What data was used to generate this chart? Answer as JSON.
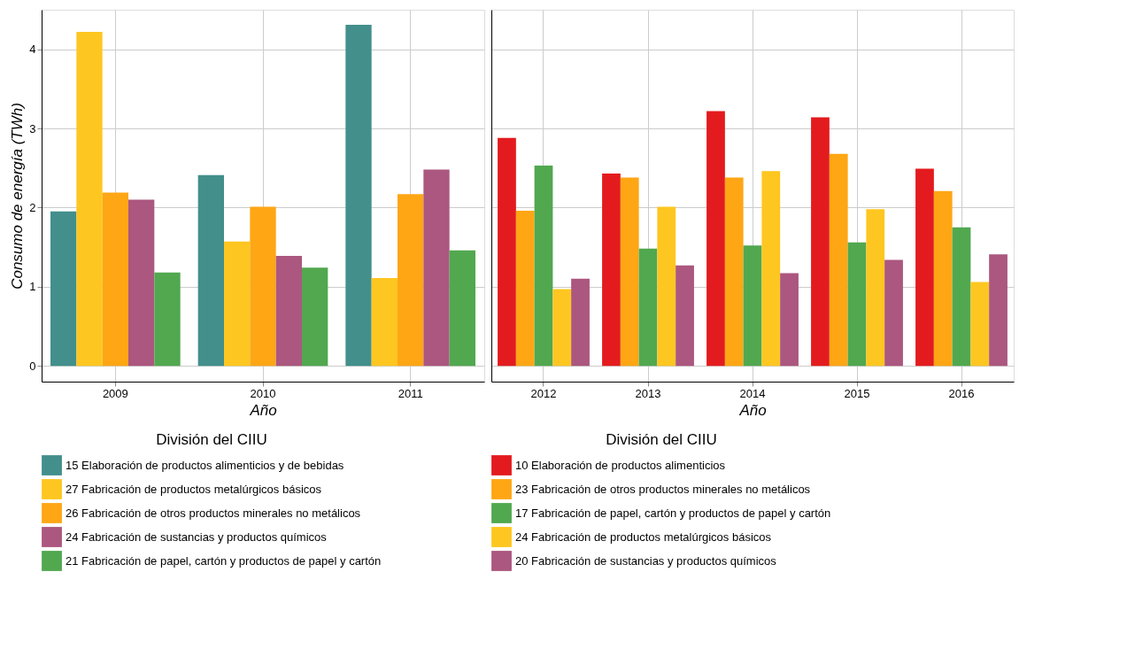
{
  "chart_data": [
    {
      "type": "bar",
      "categories": [
        "2009",
        "2010",
        "2011"
      ],
      "xlabel": "Año",
      "ylabel": "Consumo de energía (TWh)",
      "legend_title": "División del CIIU",
      "legend": "bottom",
      "grid": true,
      "ylim": [
        -0.2,
        4.5
      ],
      "yticks": [
        0,
        1,
        2,
        3,
        4
      ],
      "series": [
        {
          "name": "15 Elaboración de productos alimenticios y de bebidas",
          "color": "#428f8c",
          "values": [
            1.95,
            2.41,
            4.31
          ]
        },
        {
          "name": "27 Fabricación de productos metalúrgicos básicos",
          "color": "#fec620",
          "values": [
            4.22,
            1.57,
            1.11
          ]
        },
        {
          "name": "26 Fabricación de otros productos minerales no metálicos",
          "color": "#fea614",
          "values": [
            2.19,
            2.01,
            2.17
          ]
        },
        {
          "name": "24 Fabricación de sustancias y productos químicos",
          "color": "#ab577f",
          "values": [
            2.1,
            1.39,
            2.48
          ]
        },
        {
          "name": "21 Fabricación de papel, cartón y productos de papel y cartón",
          "color": "#51a84f",
          "values": [
            1.18,
            1.24,
            1.46
          ]
        }
      ]
    },
    {
      "type": "bar",
      "categories": [
        "2012",
        "2013",
        "2014",
        "2015",
        "2016"
      ],
      "xlabel": "Año",
      "legend_title": "División del CIIU",
      "legend": "bottom",
      "grid": true,
      "ylim": [
        -0.2,
        4.5
      ],
      "yticks": [
        0,
        1,
        2,
        3,
        4
      ],
      "tick_labels": "x",
      "series": [
        {
          "name": "10 Elaboración de productos alimenticios",
          "color": "#e31b1e",
          "values": [
            2.88,
            2.43,
            3.22,
            3.14,
            2.49
          ]
        },
        {
          "name": "23 Fabricación de otros productos minerales no metálicos",
          "color": "#fea614",
          "values": [
            1.96,
            2.38,
            2.38,
            2.68,
            2.21
          ]
        },
        {
          "name": "17 Fabricación de papel, cartón y productos de papel y cartón",
          "color": "#51a84f",
          "values": [
            2.53,
            1.48,
            1.52,
            1.56,
            1.75
          ]
        },
        {
          "name": "24 Fabricación de productos metalúrgicos básicos",
          "color": "#fec620",
          "values": [
            0.97,
            2.01,
            2.46,
            1.98,
            1.06
          ]
        },
        {
          "name": "20 Fabricación de sustancias y productos químicos",
          "color": "#ab577f",
          "values": [
            1.1,
            1.27,
            1.17,
            1.34,
            1.41
          ]
        }
      ]
    }
  ]
}
